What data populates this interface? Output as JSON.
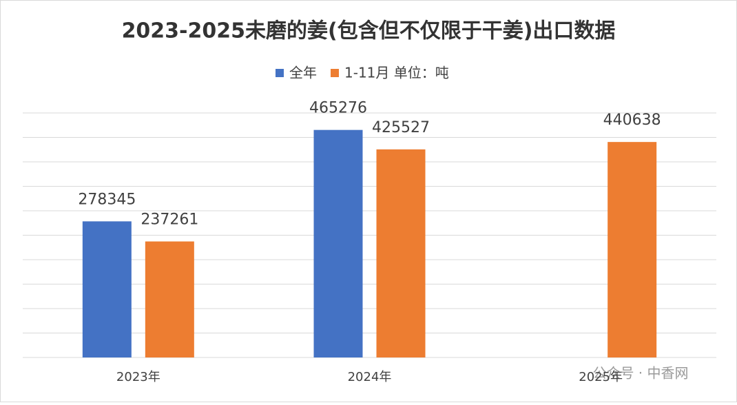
{
  "chart_data": {
    "type": "bar",
    "title": "2023-2025未磨的姜(包含但不仅限于干姜)出口数据",
    "categories": [
      "2023年",
      "2024年",
      "2025年"
    ],
    "series": [
      {
        "name": "全年",
        "color": "#4472c4",
        "values": [
          278345,
          465276,
          null
        ]
      },
      {
        "name": "1-11月 单位：吨",
        "color": "#ed7d31",
        "values": [
          237261,
          425527,
          440638
        ]
      }
    ],
    "ylim": [
      0,
      500000
    ],
    "yticks": [
      0,
      50000,
      100000,
      150000,
      200000,
      250000,
      300000,
      350000,
      400000,
      450000,
      500000
    ],
    "grid": true,
    "watermark": "公众号 · 中香网"
  }
}
